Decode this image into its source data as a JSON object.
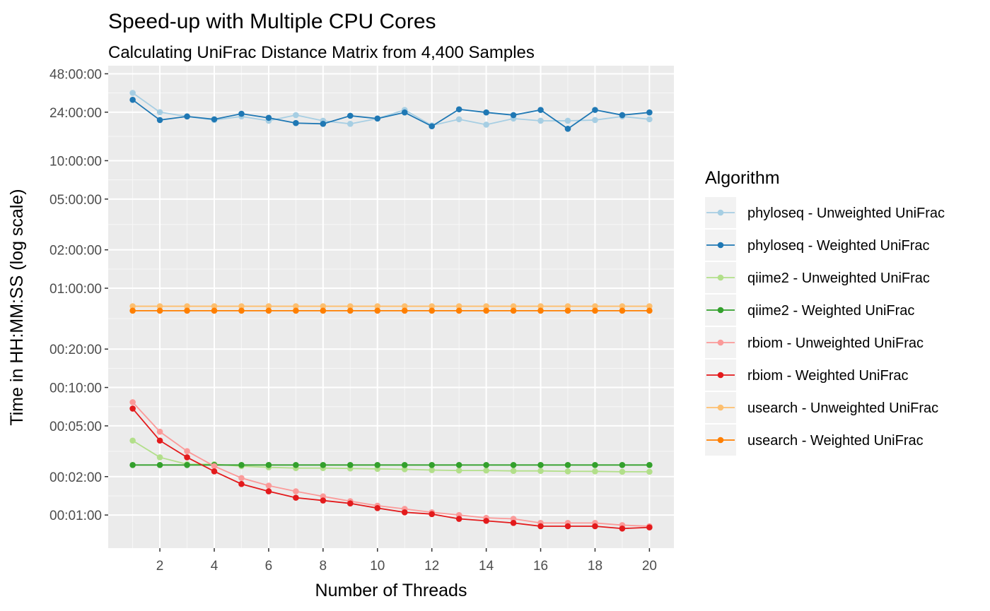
{
  "chart_data": {
    "type": "line",
    "title": "Speed-up with Multiple CPU Cores",
    "subtitle": "Calculating UniFrac Distance Matrix from 4,400 Samples",
    "xlabel": "Number of Threads",
    "ylabel": "Time in HH:MM:SS (log scale)",
    "y_scale": "log",
    "y_unit": "seconds",
    "xlim": [
      0.1,
      20.9
    ],
    "ylim_seconds": [
      33,
      200000
    ],
    "x_ticks": [
      2,
      4,
      6,
      8,
      10,
      12,
      14,
      16,
      18,
      20
    ],
    "y_ticks": [
      {
        "label": "00:01:00",
        "value": 60
      },
      {
        "label": "00:02:00",
        "value": 120
      },
      {
        "label": "00:05:00",
        "value": 300
      },
      {
        "label": "00:10:00",
        "value": 600
      },
      {
        "label": "00:20:00",
        "value": 1200
      },
      {
        "label": "01:00:00",
        "value": 3600
      },
      {
        "label": "02:00:00",
        "value": 7200
      },
      {
        "label": "05:00:00",
        "value": 18000
      },
      {
        "label": "10:00:00",
        "value": 36000
      },
      {
        "label": "24:00:00",
        "value": 86400
      },
      {
        "label": "48:00:00",
        "value": 172800
      }
    ],
    "grid": true,
    "legend_title": "Algorithm",
    "legend_position": "right",
    "x": [
      1,
      2,
      3,
      4,
      5,
      6,
      7,
      8,
      9,
      10,
      11,
      12,
      13,
      14,
      15,
      16,
      17,
      18,
      19,
      20
    ],
    "series": [
      {
        "name": "phyloseq - Unweighted UniFrac",
        "color": "#a6cee3",
        "values": [
          122400,
          86400,
          80000,
          75000,
          80000,
          74000,
          82000,
          74000,
          70000,
          77000,
          90000,
          68000,
          76000,
          69000,
          77000,
          74000,
          74000,
          75000,
          80000,
          76000
        ]
      },
      {
        "name": "phyloseq - Weighted UniFrac",
        "color": "#1f78b4",
        "values": [
          108000,
          75000,
          80000,
          76000,
          84000,
          78000,
          71000,
          70000,
          81000,
          77000,
          86000,
          67000,
          91000,
          86000,
          82000,
          90000,
          64000,
          90000,
          82000,
          86000
        ]
      },
      {
        "name": "qiime2 - Unweighted UniFrac",
        "color": "#b2df8a",
        "values": [
          230,
          170,
          150,
          150,
          145,
          142,
          140,
          140,
          139,
          138,
          137,
          135,
          134,
          134,
          133,
          133,
          132,
          132,
          131,
          131
        ]
      },
      {
        "name": "qiime2 - Weighted UniFrac",
        "color": "#33a02c",
        "values": [
          148,
          148,
          148,
          148,
          148,
          148,
          148,
          148,
          148,
          148,
          148,
          148,
          148,
          148,
          148,
          148,
          148,
          148,
          148,
          148
        ]
      },
      {
        "name": "rbiom - Unweighted UniFrac",
        "color": "#fb9a99",
        "values": [
          460,
          270,
          190,
          145,
          117,
          102,
          92,
          84,
          77,
          71,
          67,
          63,
          60,
          57,
          56,
          52,
          52,
          52,
          50,
          49
        ]
      },
      {
        "name": "rbiom - Weighted UniFrac",
        "color": "#e31a1c",
        "values": [
          410,
          230,
          170,
          132,
          105,
          92,
          82,
          78,
          74,
          68,
          63,
          61,
          56,
          54,
          52,
          49,
          49,
          49,
          47,
          48
        ]
      },
      {
        "name": "usearch - Unweighted UniFrac",
        "color": "#fdbf6f",
        "values": [
          2600,
          2600,
          2600,
          2600,
          2600,
          2600,
          2600,
          2600,
          2600,
          2600,
          2600,
          2600,
          2600,
          2600,
          2600,
          2600,
          2600,
          2600,
          2600,
          2600
        ]
      },
      {
        "name": "usearch - Weighted UniFrac",
        "color": "#ff7f00",
        "values": [
          2400,
          2400,
          2400,
          2400,
          2400,
          2400,
          2400,
          2400,
          2400,
          2400,
          2400,
          2400,
          2400,
          2400,
          2400,
          2400,
          2400,
          2400,
          2400,
          2400
        ]
      }
    ]
  }
}
